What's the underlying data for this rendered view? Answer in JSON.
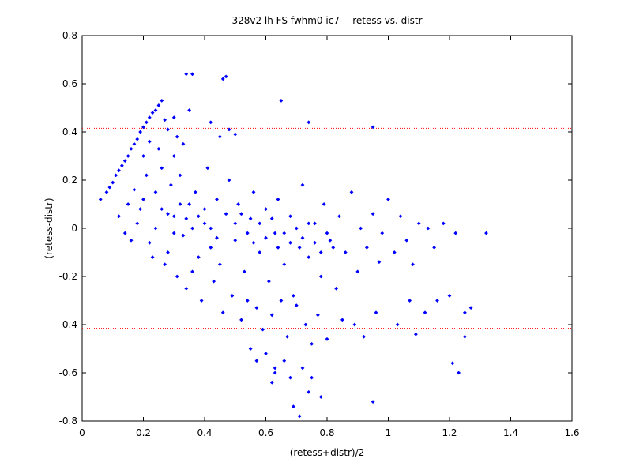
{
  "chart_data": {
    "type": "scatter",
    "title": "328v2 lh FS fwhm0 ic7 -- retess vs. distr",
    "xlabel": "(retess+distr)/2",
    "ylabel": "(retess-distr)",
    "xlim": [
      0,
      1.6
    ],
    "ylim": [
      -0.8,
      0.8
    ],
    "x_ticks": [
      "0",
      "0.2",
      "0.4",
      "0.6",
      "0.8",
      "1",
      "1.2",
      "1.4",
      "1.6"
    ],
    "y_ticks": [
      "-0.8",
      "-0.6",
      "-0.4",
      "-0.2",
      "0",
      "0.2",
      "0.4",
      "0.6",
      "0.8"
    ],
    "grid": false,
    "marker_color": "#0000ff",
    "reference_line_color": "#ff0000",
    "reference_lines_y": [
      0.415,
      -0.415
    ],
    "series": [
      {
        "points": [
          [
            0.06,
            0.12
          ],
          [
            0.08,
            0.15
          ],
          [
            0.09,
            0.17
          ],
          [
            0.1,
            0.19
          ],
          [
            0.11,
            0.22
          ],
          [
            0.12,
            0.24
          ],
          [
            0.13,
            0.26
          ],
          [
            0.14,
            0.28
          ],
          [
            0.15,
            0.3
          ],
          [
            0.16,
            0.33
          ],
          [
            0.17,
            0.35
          ],
          [
            0.18,
            0.37
          ],
          [
            0.19,
            0.4
          ],
          [
            0.2,
            0.42
          ],
          [
            0.21,
            0.44
          ],
          [
            0.22,
            0.46
          ],
          [
            0.23,
            0.48
          ],
          [
            0.24,
            0.49
          ],
          [
            0.25,
            0.51
          ],
          [
            0.26,
            0.53
          ],
          [
            0.27,
            0.45
          ],
          [
            0.2,
            0.3
          ],
          [
            0.22,
            0.36
          ],
          [
            0.25,
            0.33
          ],
          [
            0.28,
            0.41
          ],
          [
            0.3,
            0.46
          ],
          [
            0.31,
            0.38
          ],
          [
            0.33,
            0.35
          ],
          [
            0.35,
            0.49
          ],
          [
            0.34,
            0.64
          ],
          [
            0.36,
            0.64
          ],
          [
            0.46,
            0.62
          ],
          [
            0.47,
            0.63
          ],
          [
            0.42,
            0.44
          ],
          [
            0.45,
            0.38
          ],
          [
            0.48,
            0.41
          ],
          [
            0.5,
            0.39
          ],
          [
            0.65,
            0.53
          ],
          [
            0.74,
            0.44
          ],
          [
            0.95,
            0.42
          ],
          [
            0.12,
            0.05
          ],
          [
            0.15,
            0.1
          ],
          [
            0.14,
            -0.02
          ],
          [
            0.18,
            0.02
          ],
          [
            0.2,
            0.12
          ],
          [
            0.22,
            -0.06
          ],
          [
            0.24,
            0.0
          ],
          [
            0.26,
            0.08
          ],
          [
            0.28,
            -0.1
          ],
          [
            0.3,
            0.05
          ],
          [
            0.29,
            0.18
          ],
          [
            0.32,
            0.22
          ],
          [
            0.33,
            -0.03
          ],
          [
            0.35,
            0.1
          ],
          [
            0.37,
            0.15
          ],
          [
            0.38,
            -0.12
          ],
          [
            0.4,
            0.02
          ],
          [
            0.41,
            0.25
          ],
          [
            0.42,
            -0.08
          ],
          [
            0.44,
            0.12
          ],
          [
            0.45,
            -0.15
          ],
          [
            0.47,
            0.06
          ],
          [
            0.48,
            0.2
          ],
          [
            0.5,
            -0.05
          ],
          [
            0.51,
            0.1
          ],
          [
            0.53,
            -0.18
          ],
          [
            0.55,
            0.04
          ],
          [
            0.56,
            0.15
          ],
          [
            0.58,
            -0.1
          ],
          [
            0.6,
            0.08
          ],
          [
            0.61,
            -0.22
          ],
          [
            0.63,
            -0.02
          ],
          [
            0.64,
            0.12
          ],
          [
            0.66,
            -0.15
          ],
          [
            0.68,
            0.05
          ],
          [
            0.69,
            -0.28
          ],
          [
            0.71,
            -0.08
          ],
          [
            0.72,
            0.18
          ],
          [
            0.74,
            -0.12
          ],
          [
            0.76,
            0.02
          ],
          [
            0.78,
            -0.2
          ],
          [
            0.79,
            0.1
          ],
          [
            0.81,
            -0.05
          ],
          [
            0.83,
            -0.25
          ],
          [
            0.84,
            0.05
          ],
          [
            0.86,
            -0.1
          ],
          [
            0.88,
            0.15
          ],
          [
            0.9,
            -0.18
          ],
          [
            0.91,
            0.0
          ],
          [
            0.93,
            -0.08
          ],
          [
            0.95,
            0.06
          ],
          [
            0.97,
            -0.14
          ],
          [
            0.98,
            -0.02
          ],
          [
            1.0,
            0.12
          ],
          [
            1.02,
            -0.1
          ],
          [
            1.04,
            0.05
          ],
          [
            1.06,
            -0.05
          ],
          [
            1.08,
            -0.15
          ],
          [
            1.1,
            0.02
          ],
          [
            1.13,
            0.0
          ],
          [
            1.15,
            -0.08
          ],
          [
            1.18,
            0.02
          ],
          [
            1.22,
            -0.02
          ],
          [
            1.32,
            -0.02
          ],
          [
            0.3,
            0.3
          ],
          [
            0.26,
            0.25
          ],
          [
            0.24,
            0.15
          ],
          [
            0.21,
            0.22
          ],
          [
            0.19,
            0.08
          ],
          [
            0.17,
            0.16
          ],
          [
            0.16,
            -0.05
          ],
          [
            0.23,
            -0.12
          ],
          [
            0.27,
            -0.15
          ],
          [
            0.31,
            -0.2
          ],
          [
            0.34,
            -0.25
          ],
          [
            0.36,
            -0.18
          ],
          [
            0.39,
            -0.3
          ],
          [
            0.43,
            -0.22
          ],
          [
            0.46,
            -0.35
          ],
          [
            0.49,
            -0.28
          ],
          [
            0.52,
            -0.38
          ],
          [
            0.54,
            -0.3
          ],
          [
            0.57,
            -0.33
          ],
          [
            0.59,
            -0.42
          ],
          [
            0.62,
            -0.36
          ],
          [
            0.65,
            -0.3
          ],
          [
            0.67,
            -0.45
          ],
          [
            0.7,
            -0.32
          ],
          [
            0.73,
            -0.4
          ],
          [
            0.75,
            -0.48
          ],
          [
            0.77,
            -0.36
          ],
          [
            0.8,
            -0.46
          ],
          [
            0.85,
            -0.38
          ],
          [
            0.89,
            -0.4
          ],
          [
            0.92,
            -0.45
          ],
          [
            0.96,
            -0.35
          ],
          [
            1.03,
            -0.4
          ],
          [
            1.07,
            -0.3
          ],
          [
            1.09,
            -0.44
          ],
          [
            1.12,
            -0.35
          ],
          [
            1.16,
            -0.3
          ],
          [
            1.2,
            -0.28
          ],
          [
            1.25,
            -0.35
          ],
          [
            1.27,
            -0.33
          ],
          [
            0.55,
            -0.5
          ],
          [
            0.57,
            -0.55
          ],
          [
            0.6,
            -0.52
          ],
          [
            0.63,
            -0.58
          ],
          [
            0.66,
            -0.55
          ],
          [
            0.62,
            -0.64
          ],
          [
            0.68,
            -0.62
          ],
          [
            0.72,
            -0.58
          ],
          [
            0.75,
            -0.62
          ],
          [
            0.69,
            -0.74
          ],
          [
            0.71,
            -0.78
          ],
          [
            0.74,
            -0.68
          ],
          [
            0.78,
            -0.7
          ],
          [
            0.95,
            -0.72
          ],
          [
            0.63,
            -0.6
          ],
          [
            1.21,
            -0.56
          ],
          [
            1.23,
            -0.6
          ],
          [
            1.25,
            -0.45
          ],
          [
            0.4,
            0.08
          ],
          [
            0.42,
            0.0
          ],
          [
            0.44,
            -0.04
          ],
          [
            0.38,
            0.05
          ],
          [
            0.36,
            0.0
          ],
          [
            0.34,
            0.04
          ],
          [
            0.32,
            0.1
          ],
          [
            0.3,
            -0.02
          ],
          [
            0.28,
            0.06
          ],
          [
            0.5,
            0.02
          ],
          [
            0.52,
            0.06
          ],
          [
            0.54,
            -0.02
          ],
          [
            0.56,
            -0.06
          ],
          [
            0.58,
            0.02
          ],
          [
            0.6,
            -0.04
          ],
          [
            0.62,
            0.04
          ],
          [
            0.64,
            -0.08
          ],
          [
            0.66,
            -0.02
          ],
          [
            0.68,
            -0.06
          ],
          [
            0.7,
            0.0
          ],
          [
            0.72,
            -0.04
          ],
          [
            0.74,
            0.02
          ],
          [
            0.76,
            -0.06
          ],
          [
            0.78,
            -0.1
          ],
          [
            0.8,
            -0.02
          ],
          [
            0.82,
            -0.08
          ]
        ]
      }
    ]
  }
}
